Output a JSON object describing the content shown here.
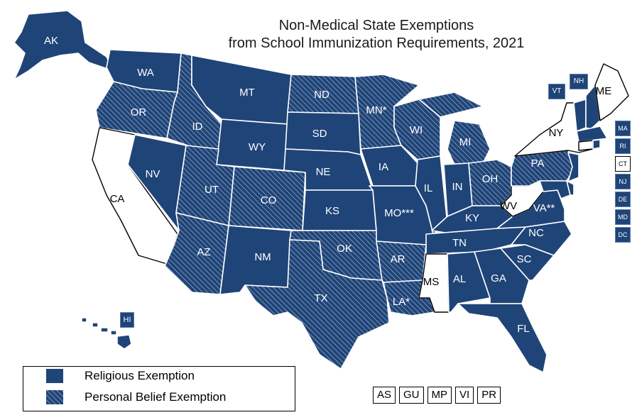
{
  "title": {
    "line1": "Non-Medical State Exemptions",
    "line2": "from School Immunization Requirements, 2021"
  },
  "colors": {
    "religious": "#1f4477",
    "personal_belief_hatch": "#1f4477",
    "none": "#ffffff"
  },
  "legend": {
    "religious": "Religious Exemption",
    "personal_belief": "Personal Belief Exemption"
  },
  "states": {
    "AK": {
      "label": "AK",
      "category": "religious"
    },
    "WA": {
      "label": "WA",
      "category": "religious"
    },
    "OR": {
      "label": "OR",
      "category": "personal_belief"
    },
    "CA": {
      "label": "CA",
      "category": "none"
    },
    "NV": {
      "label": "NV",
      "category": "religious"
    },
    "ID": {
      "label": "ID",
      "category": "personal_belief"
    },
    "MT": {
      "label": "MT",
      "category": "religious"
    },
    "WY": {
      "label": "WY",
      "category": "religious"
    },
    "UT": {
      "label": "UT",
      "category": "personal_belief"
    },
    "CO": {
      "label": "CO",
      "category": "personal_belief"
    },
    "AZ": {
      "label": "AZ",
      "category": "personal_belief"
    },
    "NM": {
      "label": "NM",
      "category": "religious"
    },
    "ND": {
      "label": "ND",
      "category": "personal_belief"
    },
    "SD": {
      "label": "SD",
      "category": "religious"
    },
    "NE": {
      "label": "NE",
      "category": "religious"
    },
    "KS": {
      "label": "KS",
      "category": "religious"
    },
    "OK": {
      "label": "OK",
      "category": "personal_belief"
    },
    "TX": {
      "label": "TX",
      "category": "personal_belief"
    },
    "MN": {
      "label": "MN*",
      "category": "personal_belief"
    },
    "IA": {
      "label": "IA",
      "category": "religious"
    },
    "MO": {
      "label": "MO***",
      "category": "religious"
    },
    "AR": {
      "label": "AR",
      "category": "personal_belief"
    },
    "LA": {
      "label": "LA*",
      "category": "personal_belief"
    },
    "WI": {
      "label": "WI",
      "category": "personal_belief"
    },
    "IL": {
      "label": "IL",
      "category": "religious"
    },
    "MI": {
      "label": "MI",
      "category": "personal_belief"
    },
    "IN": {
      "label": "IN",
      "category": "religious"
    },
    "OH": {
      "label": "OH",
      "category": "personal_belief"
    },
    "KY": {
      "label": "KY",
      "category": "religious"
    },
    "TN": {
      "label": "TN",
      "category": "religious"
    },
    "MS": {
      "label": "MS",
      "category": "none"
    },
    "AL": {
      "label": "AL",
      "category": "religious"
    },
    "GA": {
      "label": "GA",
      "category": "religious"
    },
    "FL": {
      "label": "FL",
      "category": "religious"
    },
    "SC": {
      "label": "SC",
      "category": "religious"
    },
    "NC": {
      "label": "NC",
      "category": "religious"
    },
    "VA": {
      "label": "VA**",
      "category": "religious"
    },
    "WV": {
      "label": "WV",
      "category": "none"
    },
    "PA": {
      "label": "PA",
      "category": "personal_belief"
    },
    "NY": {
      "label": "NY",
      "category": "none"
    },
    "ME": {
      "label": "ME",
      "category": "none"
    },
    "VT": {
      "label": "VT",
      "category": "religious"
    },
    "NH": {
      "label": "NH",
      "category": "religious"
    },
    "HI": {
      "label": "HI",
      "category": "religious"
    }
  },
  "small_states": {
    "MA": {
      "label": "MA",
      "category": "religious"
    },
    "RI": {
      "label": "RI",
      "category": "religious"
    },
    "CT": {
      "label": "CT",
      "category": "none"
    },
    "NJ": {
      "label": "NJ",
      "category": "religious"
    },
    "DE": {
      "label": "DE",
      "category": "religious"
    },
    "MD": {
      "label": "MD",
      "category": "religious"
    },
    "DC": {
      "label": "DC",
      "category": "religious"
    }
  },
  "territories": {
    "AS": "AS",
    "GU": "GU",
    "MP": "MP",
    "VI": "VI",
    "PR": "PR"
  }
}
